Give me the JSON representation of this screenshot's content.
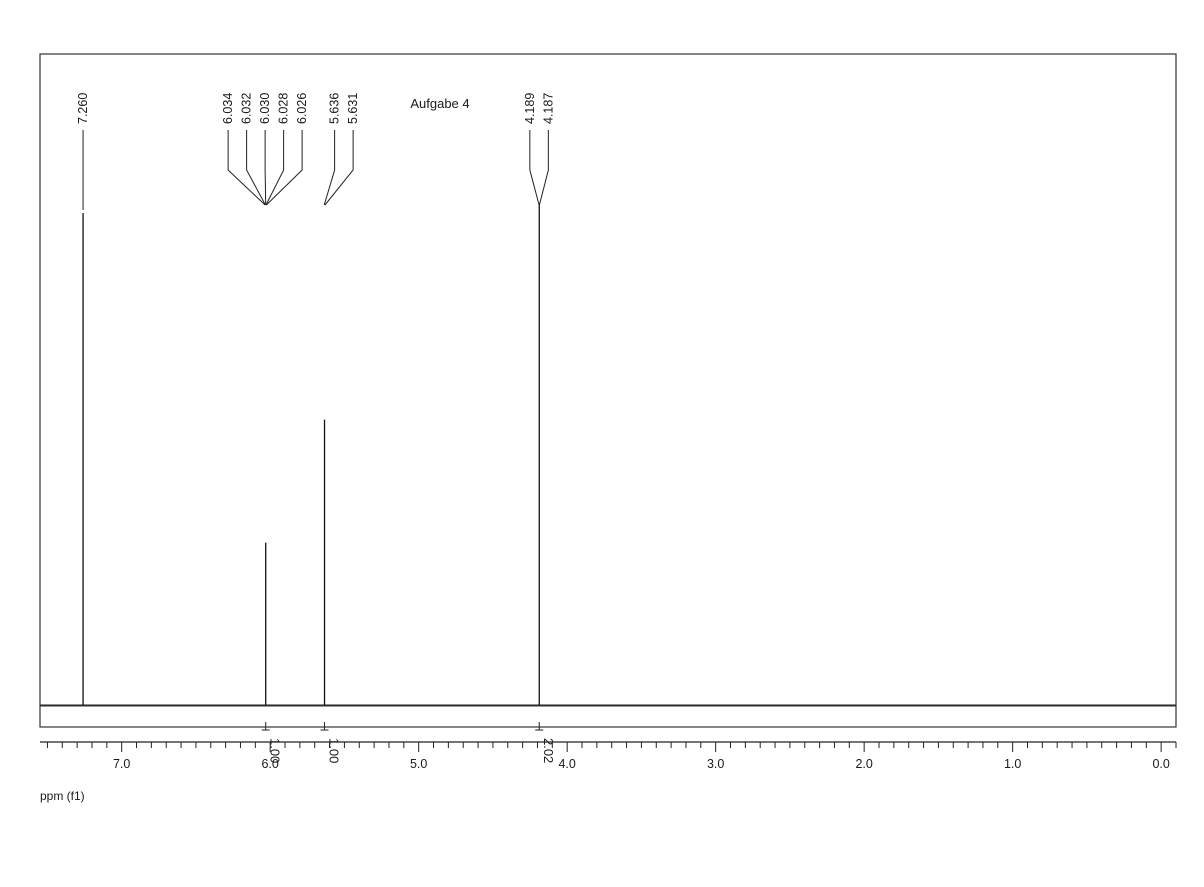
{
  "chart_data": {
    "type": "line",
    "title": "Aufgabe 4",
    "xlabel": "ppm (f1)",
    "ylabel": "",
    "xlim": [
      7.55,
      -0.1
    ],
    "x_reversed": true,
    "x_ticks": [
      {
        "value": 7.0,
        "label": "7.0"
      },
      {
        "value": 6.0,
        "label": "6.0"
      },
      {
        "value": 5.0,
        "label": "5.0"
      },
      {
        "value": 4.0,
        "label": "4.0"
      },
      {
        "value": 3.0,
        "label": "3.0"
      },
      {
        "value": 2.0,
        "label": "2.0"
      },
      {
        "value": 1.0,
        "label": "1.0"
      },
      {
        "value": 0.0,
        "label": "0.0"
      }
    ],
    "peaks": [
      {
        "ppm": 7.26,
        "intensity": 1.0
      },
      {
        "ppm": 6.03,
        "intensity": 0.33
      },
      {
        "ppm": 5.634,
        "intensity": 0.58
      },
      {
        "ppm": 4.188,
        "intensity": 1.02
      }
    ],
    "peak_labels": [
      {
        "text": "7.260",
        "ppm": 7.26,
        "group": 0
      },
      {
        "text": "6.034",
        "ppm": 6.034,
        "group": 1
      },
      {
        "text": "6.032",
        "ppm": 6.032,
        "group": 1
      },
      {
        "text": "6.030",
        "ppm": 6.03,
        "group": 1
      },
      {
        "text": "6.028",
        "ppm": 6.028,
        "group": 1
      },
      {
        "text": "6.026",
        "ppm": 6.026,
        "group": 1
      },
      {
        "text": "5.636",
        "ppm": 5.636,
        "group": 2
      },
      {
        "text": "5.631",
        "ppm": 5.631,
        "group": 2
      },
      {
        "text": "4.189",
        "ppm": 4.189,
        "group": 3
      },
      {
        "text": "4.187",
        "ppm": 4.187,
        "group": 3
      }
    ],
    "integrals": [
      {
        "ppm": 6.03,
        "value": "1.00"
      },
      {
        "ppm": 5.634,
        "value": "1.00"
      },
      {
        "ppm": 4.188,
        "value": "2.02"
      }
    ],
    "grid": false,
    "legend": "none"
  }
}
